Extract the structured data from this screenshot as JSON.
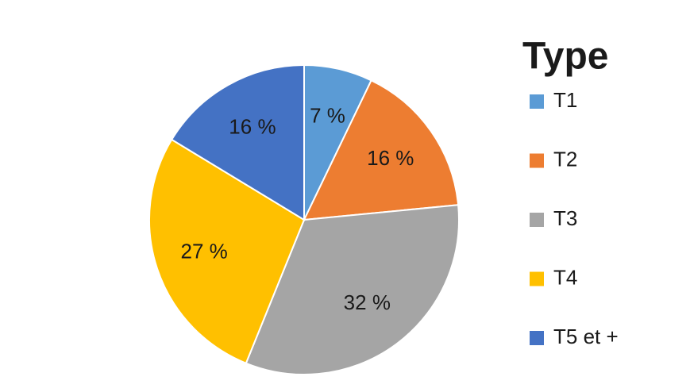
{
  "chart_data": {
    "type": "pie",
    "legend_title": "Type",
    "categories": [
      "T1",
      "T2",
      "T3",
      "T4",
      "T5 et +"
    ],
    "values": [
      7,
      16,
      32,
      27,
      16
    ],
    "value_labels": [
      "7 %",
      "16 %",
      "32 %",
      "27 %",
      "16 %"
    ],
    "colors": [
      "#5b9bd5",
      "#ed7d31",
      "#a5a5a5",
      "#ffc000",
      "#4472c4"
    ],
    "legend": "right"
  }
}
